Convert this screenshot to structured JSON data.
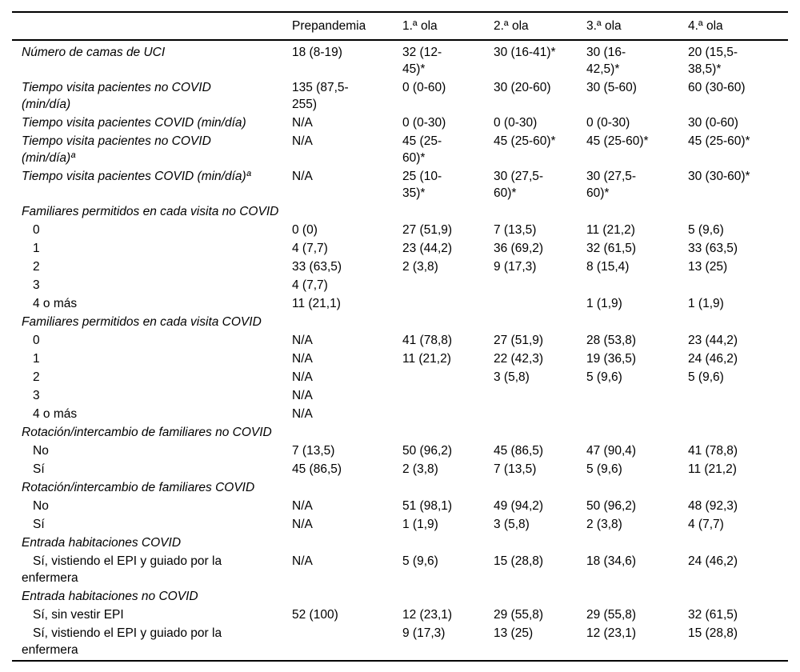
{
  "colors": {
    "background": "#ffffff",
    "text": "#000000",
    "rule": "#000000"
  },
  "chart_data": {
    "type": "table",
    "columns": [
      "",
      "Prepandemia",
      "1.ª ola",
      "2.ª ola",
      "3.ª ola",
      "4.ª ola"
    ],
    "rows": [
      {
        "style": "param",
        "label": "Número de camas de UCI",
        "values": [
          "18 (8-19)",
          "32 (12-45)*",
          "30 (16-41)*",
          "30 (16-42,5)*",
          "20 (15,5-38,5)*"
        ]
      },
      {
        "style": "param",
        "label": "Tiempo visita pacientes no COVID (min/día)",
        "values": [
          "135 (87,5-255)",
          "0 (0-60)",
          "30 (20-60)",
          "30 (5-60)",
          "60 (30-60)"
        ]
      },
      {
        "style": "param",
        "label": "Tiempo visita pacientes COVID (min/día)",
        "values": [
          "N/A",
          "0 (0-30)",
          "0 (0-30)",
          "0 (0-30)",
          "30 (0-60)"
        ]
      },
      {
        "style": "param",
        "label": "Tiempo visita pacientes no COVID (min/día)ª",
        "values": [
          "N/A",
          "45 (25-60)*",
          "45 (25-60)*",
          "45 (25-60)*",
          "45 (25-60)*"
        ]
      },
      {
        "style": "param",
        "label": "Tiempo visita pacientes COVID (min/día)ª",
        "values": [
          "N/A",
          "25 (10-35)*",
          "30 (27,5-60)*",
          "30 (27,5-60)*",
          "30 (30-60)*"
        ]
      },
      {
        "style": "section",
        "label": "Familiares permitidos en cada visita no COVID",
        "values": [
          "",
          "",
          "",
          "",
          ""
        ]
      },
      {
        "style": "sub",
        "label": "0",
        "values": [
          "0 (0)",
          "27 (51,9)",
          "7 (13,5)",
          "11 (21,2)",
          "5 (9,6)"
        ]
      },
      {
        "style": "sub",
        "label": "1",
        "values": [
          "4 (7,7)",
          "23 (44,2)",
          "36 (69,2)",
          "32 (61,5)",
          "33 (63,5)"
        ]
      },
      {
        "style": "sub",
        "label": "2",
        "values": [
          "33 (63,5)",
          "2 (3,8)",
          "9 (17,3)",
          "8 (15,4)",
          "13 (25)"
        ]
      },
      {
        "style": "sub",
        "label": "3",
        "values": [
          "4 (7,7)",
          "",
          "",
          "",
          ""
        ]
      },
      {
        "style": "sub",
        "label": "4 o más",
        "values": [
          "11 (21,1)",
          "",
          "",
          "1 (1,9)",
          "1 (1,9)"
        ]
      },
      {
        "style": "section",
        "label": "Familiares permitidos en cada visita COVID",
        "values": [
          "",
          "",
          "",
          "",
          ""
        ]
      },
      {
        "style": "sub",
        "label": "0",
        "values": [
          "N/A",
          "41 (78,8)",
          "27 (51,9)",
          "28 (53,8)",
          "23 (44,2)"
        ]
      },
      {
        "style": "sub",
        "label": "1",
        "values": [
          "N/A",
          "11 (21,2)",
          "22 (42,3)",
          "19 (36,5)",
          "24 (46,2)"
        ]
      },
      {
        "style": "sub",
        "label": "2",
        "values": [
          "N/A",
          "",
          "3 (5,8)",
          "5 (9,6)",
          "5 (9,6)"
        ]
      },
      {
        "style": "sub",
        "label": "3",
        "values": [
          "N/A",
          "",
          "",
          "",
          ""
        ]
      },
      {
        "style": "sub",
        "label": "4 o más",
        "values": [
          "N/A",
          "",
          "",
          "",
          ""
        ]
      },
      {
        "style": "section",
        "label": "Rotación/intercambio de familiares no COVID",
        "values": [
          "",
          "",
          "",
          "",
          ""
        ]
      },
      {
        "style": "sub",
        "label": "No",
        "values": [
          "7 (13,5)",
          "50 (96,2)",
          "45 (86,5)",
          "47 (90,4)",
          "41 (78,8)"
        ]
      },
      {
        "style": "sub",
        "label": "Sí",
        "values": [
          "45 (86,5)",
          "2 (3,8)",
          "7 (13,5)",
          "5 (9,6)",
          "11 (21,2)"
        ]
      },
      {
        "style": "section",
        "label": "Rotación/intercambio de familiares COVID",
        "values": [
          "",
          "",
          "",
          "",
          ""
        ]
      },
      {
        "style": "sub",
        "label": "No",
        "values": [
          "N/A",
          "51 (98,1)",
          "49 (94,2)",
          "50 (96,2)",
          "48 (92,3)"
        ]
      },
      {
        "style": "sub",
        "label": "Sí",
        "values": [
          "N/A",
          "1 (1,9)",
          "3 (5,8)",
          "2 (3,8)",
          "4 (7,7)"
        ]
      },
      {
        "style": "section",
        "label": "Entrada habitaciones COVID",
        "values": [
          "",
          "",
          "",
          "",
          ""
        ]
      },
      {
        "style": "sub",
        "label": "Sí, vistiendo el EPI y guiado por la enfermera",
        "values": [
          "N/A",
          "5 (9,6)",
          "15 (28,8)",
          "18 (34,6)",
          "24 (46,2)"
        ]
      },
      {
        "style": "section",
        "label": "Entrada habitaciones no COVID",
        "values": [
          "",
          "",
          "",
          "",
          ""
        ]
      },
      {
        "style": "sub",
        "label": "Sí, sin vestir EPI",
        "values": [
          "52 (100)",
          "12 (23,1)",
          "29 (55,8)",
          "29 (55,8)",
          "32 (61,5)"
        ]
      },
      {
        "style": "sub",
        "label": "Sí, vistiendo el EPI y guiado por la enfermera",
        "values": [
          "",
          "9 (17,3)",
          "13 (25)",
          "12 (23,1)",
          "15 (28,8)"
        ]
      }
    ]
  }
}
